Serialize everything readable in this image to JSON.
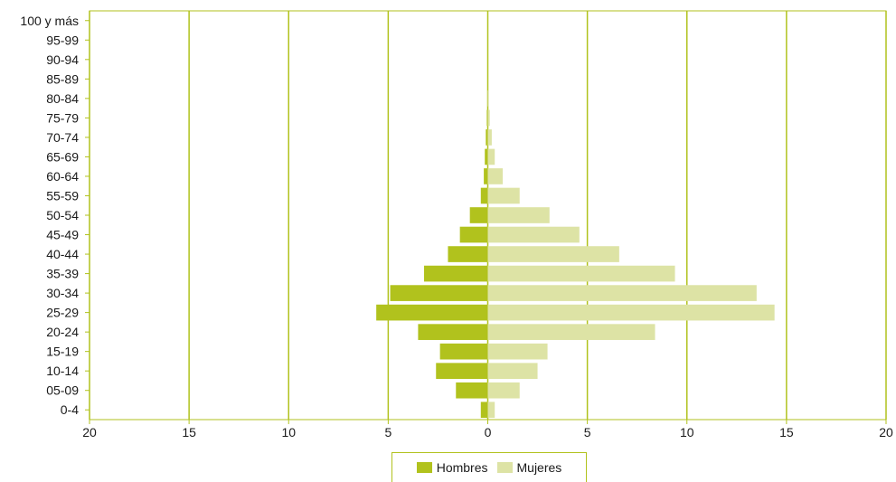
{
  "chart_data": {
    "type": "bar",
    "orientation": "horizontal-population-pyramid",
    "categories": [
      "0-4",
      "05-09",
      "10-14",
      "15-19",
      "20-24",
      "25-29",
      "30-34",
      "35-39",
      "40-44",
      "45-49",
      "50-54",
      "55-59",
      "60-64",
      "65-69",
      "70-74",
      "75-79",
      "80-84",
      "85-89",
      "90-94",
      "95-99",
      "100 y más"
    ],
    "series": [
      {
        "name": "Hombres",
        "color": "#b1c21d",
        "values": [
          0.35,
          1.6,
          2.6,
          2.4,
          3.5,
          5.6,
          4.9,
          3.2,
          2.0,
          1.4,
          0.9,
          0.35,
          0.2,
          0.15,
          0.1,
          0.05,
          0.0,
          0.0,
          0.0,
          0.0,
          0.0
        ]
      },
      {
        "name": "Mujeres",
        "color": "#dde3a5",
        "values": [
          0.35,
          1.6,
          2.5,
          3.0,
          8.4,
          14.4,
          13.5,
          9.4,
          6.6,
          4.6,
          3.1,
          1.6,
          0.75,
          0.35,
          0.2,
          0.1,
          0.05,
          0.0,
          0.0,
          0.0,
          0.0
        ]
      }
    ],
    "xlim": [
      -20,
      20
    ],
    "xticks": [
      "20",
      "15",
      "10",
      "5",
      "0",
      "5",
      "10",
      "15",
      "20"
    ],
    "grid": "vertical",
    "grid_color": "#b1c21d",
    "legend_position": "bottom-center",
    "title": "",
    "xlabel": "",
    "ylabel": ""
  },
  "legend": {
    "male_label": "Hombres",
    "female_label": "Mujeres"
  }
}
